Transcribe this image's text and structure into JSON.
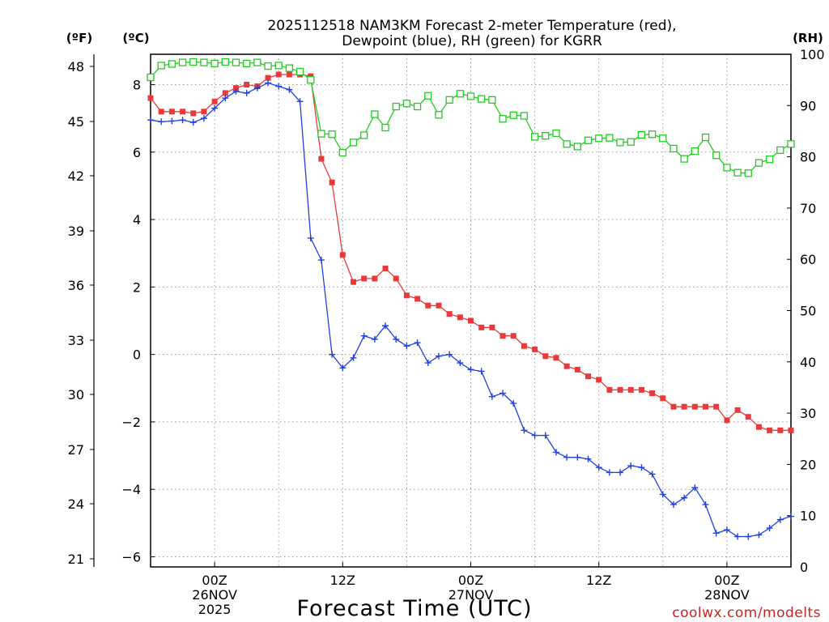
{
  "chart_data": {
    "type": "line",
    "title_line1": "2025112518 NAM3KM Forecast 2-meter Temperature (red),",
    "title_line2": "Dewpoint (blue), RH (green) for KGRR",
    "xlabel": "Forecast Time (UTC)",
    "credit": "coolwx.com/modelts",
    "left_axis_f": {
      "label": "(ºF)",
      "ticks": [
        "48",
        "45",
        "42",
        "39",
        "36",
        "33",
        "30",
        "27",
        "24",
        "21"
      ]
    },
    "left_axis_c": {
      "label": "(ºC)",
      "range": [
        -6.3,
        8.9
      ],
      "ticks": [
        "8",
        "6",
        "4",
        "2",
        "0",
        "−2",
        "−4",
        "−6"
      ]
    },
    "right_axis": {
      "label": "(RH)",
      "range": [
        0,
        100
      ],
      "ticks": [
        "100",
        "90",
        "80",
        "70",
        "60",
        "50",
        "40",
        "30",
        "20",
        "10",
        "0"
      ]
    },
    "x_hours_range": [
      18,
      78
    ],
    "x_ticks": [
      {
        "hour": 24,
        "lines": [
          "00Z",
          "26NOV",
          "2025"
        ]
      },
      {
        "hour": 36,
        "lines": [
          "12Z"
        ]
      },
      {
        "hour": 48,
        "lines": [
          "00Z",
          "27NOV"
        ]
      },
      {
        "hour": 60,
        "lines": [
          "12Z"
        ]
      },
      {
        "hour": 72,
        "lines": [
          "00Z",
          "28NOV"
        ]
      }
    ],
    "colors": {
      "temperature": "#e83a3a",
      "dewpoint": "#2040e0",
      "rh": "#22cc22"
    },
    "series": [
      {
        "name": "Temperature (°C)",
        "key": "temperature",
        "axis": "c",
        "x": [
          18,
          19,
          20,
          21,
          22,
          23,
          24,
          25,
          26,
          27,
          28,
          29,
          30,
          31,
          32,
          33,
          34,
          35,
          36,
          37,
          38,
          39,
          40,
          41,
          42,
          43,
          44,
          45,
          46,
          47,
          48,
          49,
          50,
          51,
          52,
          53,
          54,
          55,
          56,
          57,
          58,
          59,
          60,
          61,
          62,
          63,
          64,
          65,
          66,
          67,
          68,
          69,
          70,
          71,
          72,
          73,
          74,
          75,
          76,
          77,
          78
        ],
        "values": [
          7.6,
          7.2,
          7.2,
          7.2,
          7.15,
          7.2,
          7.5,
          7.75,
          7.9,
          8.0,
          7.95,
          8.2,
          8.3,
          8.3,
          8.3,
          8.25,
          5.8,
          5.1,
          2.95,
          2.15,
          2.25,
          2.25,
          2.55,
          2.25,
          1.75,
          1.65,
          1.45,
          1.45,
          1.2,
          1.1,
          1.0,
          0.8,
          0.8,
          0.55,
          0.55,
          0.25,
          0.15,
          -0.05,
          -0.1,
          -0.35,
          -0.45,
          -0.65,
          -0.75,
          -1.05,
          -1.05,
          -1.05,
          -1.05,
          -1.15,
          -1.3,
          -1.55,
          -1.55,
          -1.55,
          -1.55,
          -1.55,
          -1.95,
          -1.65,
          -1.85,
          -2.15,
          -2.25,
          -2.25,
          -2.25
        ]
      },
      {
        "name": "Dewpoint (°C)",
        "key": "dewpoint",
        "axis": "c",
        "x": [
          18,
          19,
          20,
          21,
          22,
          23,
          24,
          25,
          26,
          27,
          28,
          29,
          30,
          31,
          32,
          33,
          34,
          35,
          36,
          37,
          38,
          39,
          40,
          41,
          42,
          43,
          44,
          45,
          46,
          47,
          48,
          49,
          50,
          51,
          52,
          53,
          54,
          55,
          56,
          57,
          58,
          59,
          60,
          61,
          62,
          63,
          64,
          65,
          66,
          67,
          68,
          69,
          70,
          71,
          72,
          73,
          74,
          75,
          76,
          77,
          78
        ],
        "values": [
          6.95,
          6.9,
          6.92,
          6.95,
          6.88,
          7.0,
          7.3,
          7.6,
          7.8,
          7.75,
          7.9,
          8.05,
          7.95,
          7.85,
          7.5,
          3.45,
          2.8,
          0.0,
          -0.4,
          -0.1,
          0.55,
          0.45,
          0.85,
          0.45,
          0.25,
          0.35,
          -0.25,
          -0.05,
          0.0,
          -0.25,
          -0.45,
          -0.5,
          -1.25,
          -1.15,
          -1.45,
          -2.25,
          -2.4,
          -2.4,
          -2.9,
          -3.05,
          -3.05,
          -3.1,
          -3.35,
          -3.5,
          -3.5,
          -3.3,
          -3.35,
          -3.55,
          -4.15,
          -4.45,
          -4.25,
          -3.95,
          -4.45,
          -5.3,
          -5.2,
          -5.4,
          -5.4,
          -5.35,
          -5.15,
          -4.9,
          -4.8
        ]
      },
      {
        "name": "RH (%)",
        "key": "rh",
        "axis": "rh",
        "x": [
          18,
          19,
          20,
          21,
          22,
          23,
          24,
          25,
          26,
          27,
          28,
          29,
          30,
          31,
          32,
          33,
          34,
          35,
          36,
          37,
          38,
          39,
          40,
          41,
          42,
          43,
          44,
          45,
          46,
          47,
          48,
          49,
          50,
          51,
          52,
          53,
          54,
          55,
          56,
          57,
          58,
          59,
          60,
          61,
          62,
          63,
          64,
          65,
          66,
          67,
          68,
          69,
          70,
          71,
          72,
          73,
          74,
          75,
          76,
          77,
          78
        ],
        "values": [
          95.5,
          97.8,
          98.1,
          98.4,
          98.5,
          98.4,
          98.2,
          98.5,
          98.4,
          98.2,
          98.4,
          97.7,
          97.8,
          97.3,
          96.6,
          95.0,
          84.5,
          84.4,
          80.8,
          82.8,
          84.2,
          88.3,
          85.7,
          89.8,
          90.4,
          89.8,
          91.9,
          88.2,
          91.1,
          92.3,
          91.8,
          91.3,
          91.1,
          87.4,
          88.1,
          88.0,
          83.9,
          84.1,
          84.6,
          82.5,
          82.0,
          83.2,
          83.6,
          83.7,
          82.8,
          82.9,
          84.3,
          84.4,
          83.6,
          81.6,
          79.6,
          81.1,
          83.8,
          80.3,
          77.9,
          76.9,
          76.8,
          78.8,
          79.5,
          81.3,
          82.5
        ]
      }
    ]
  }
}
